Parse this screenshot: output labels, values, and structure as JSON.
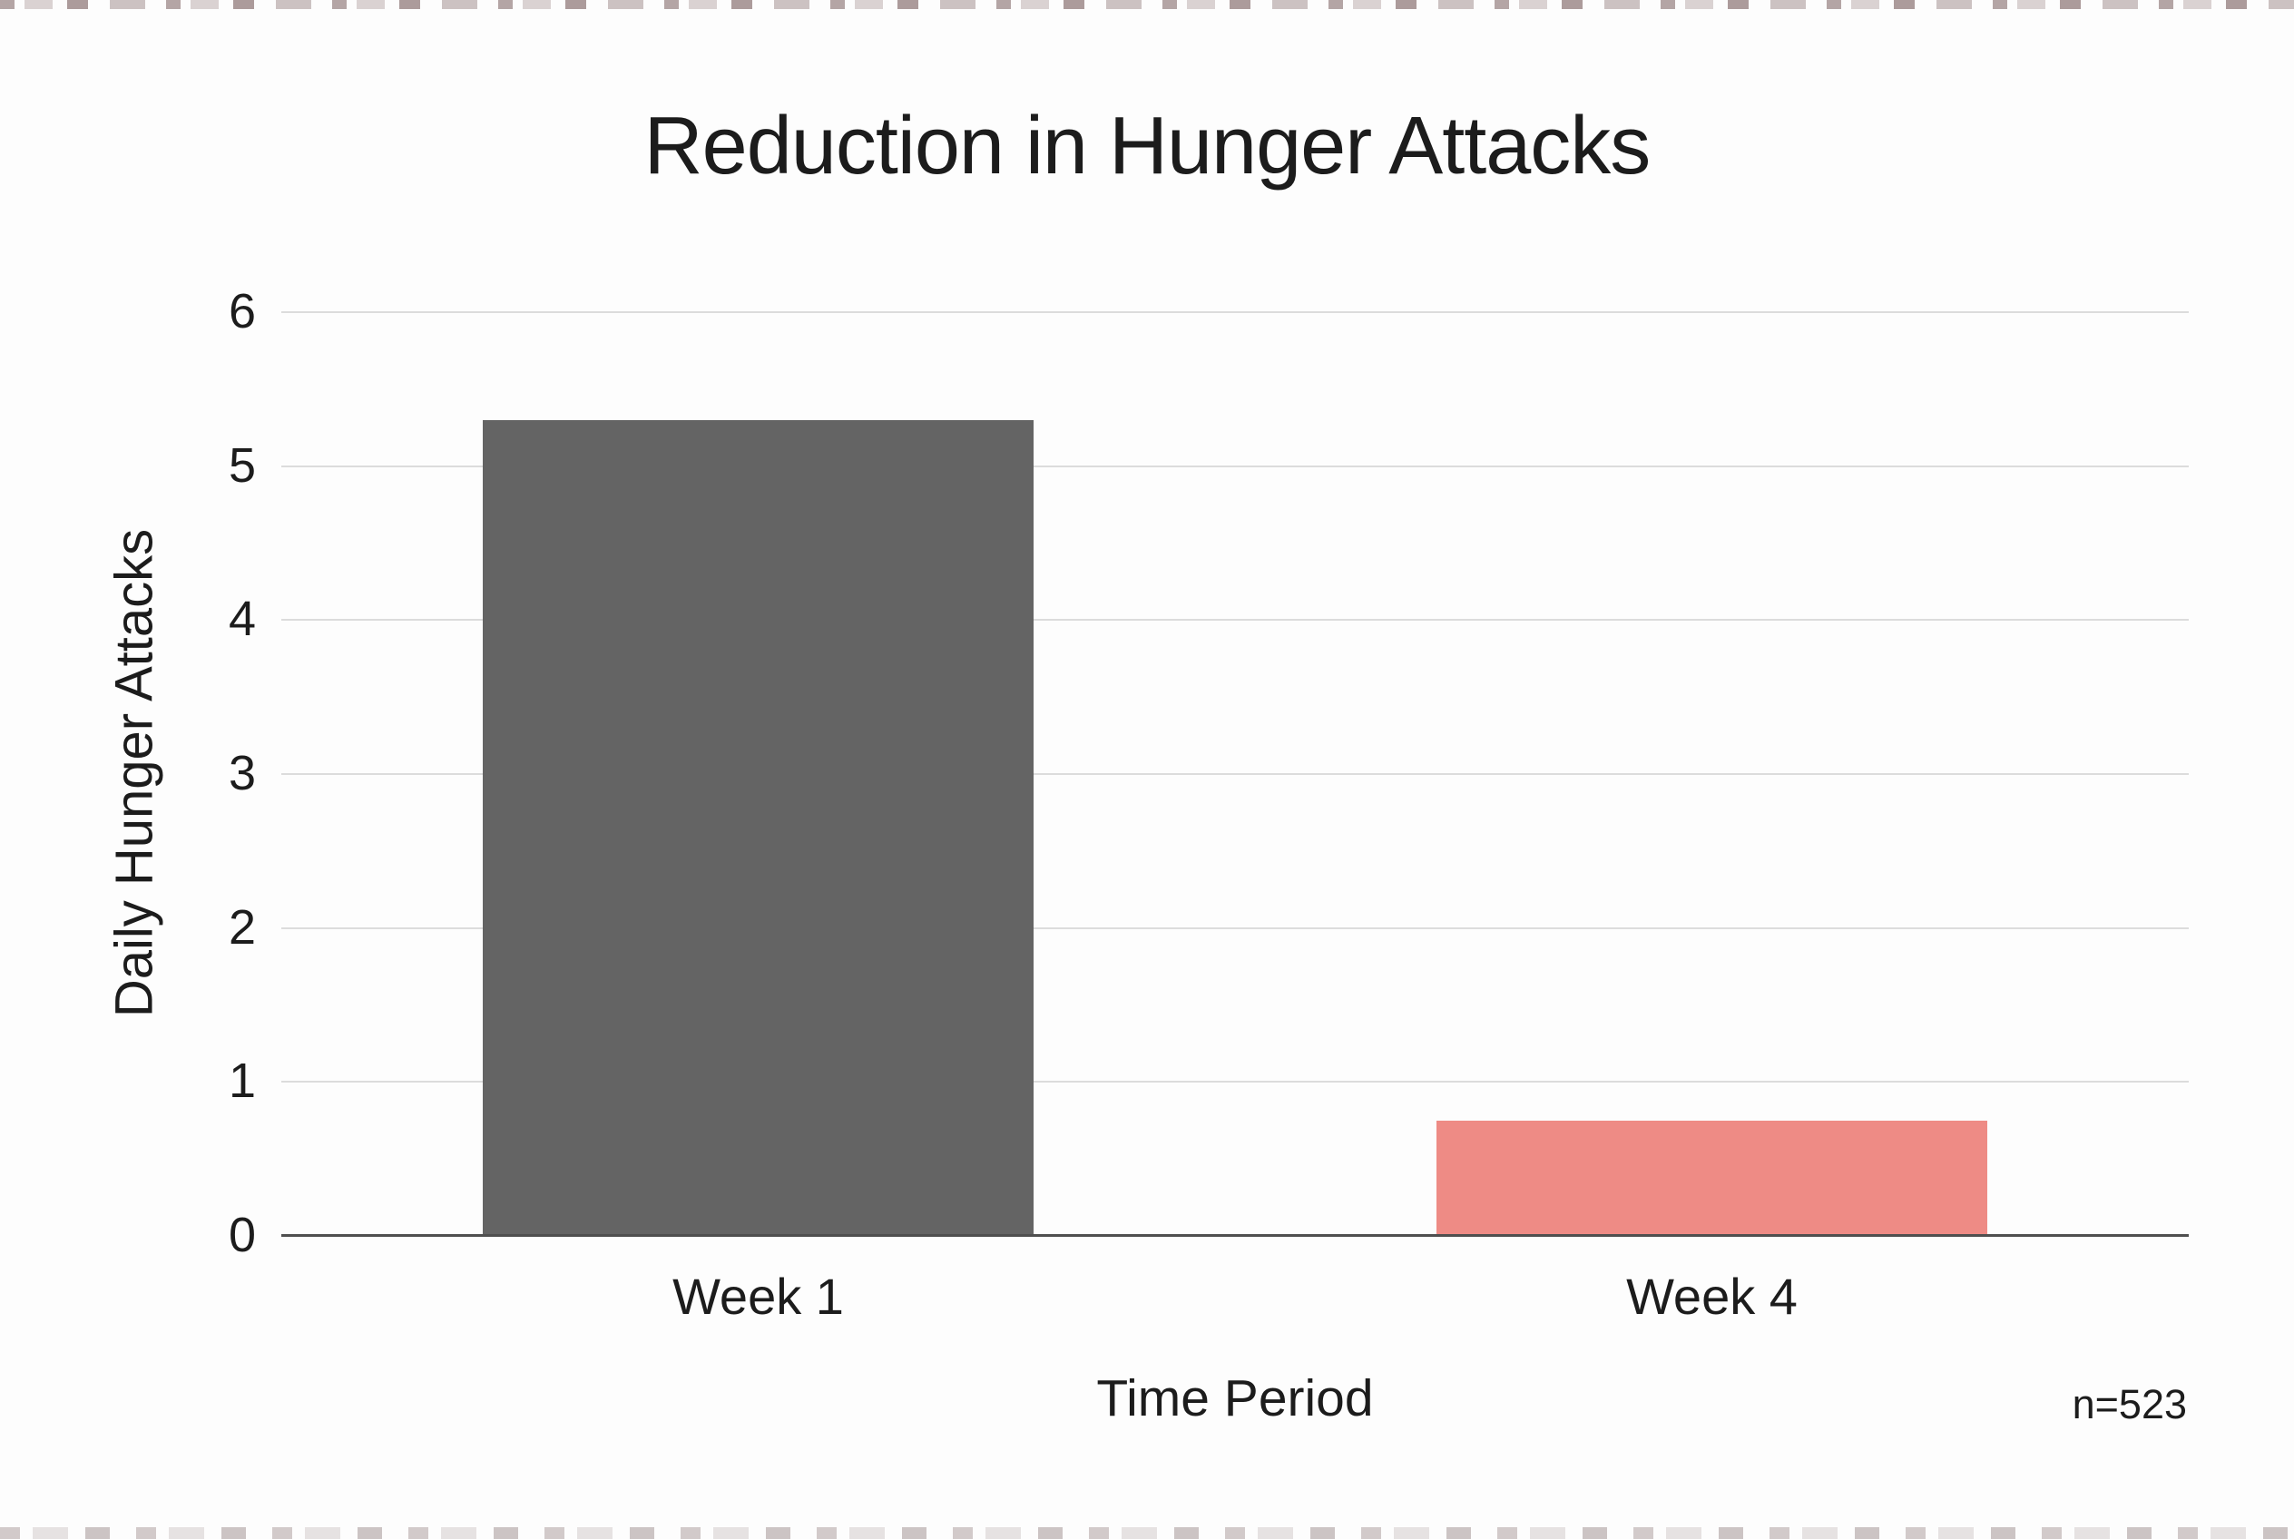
{
  "chart_data": {
    "type": "bar",
    "title": "Reduction in Hunger Attacks",
    "xlabel": "Time Period",
    "ylabel": "Daily Hunger Attacks",
    "categories": [
      "Week 1",
      "Week 4"
    ],
    "values": [
      5.3,
      0.75
    ],
    "bar_colors": [
      "#646464",
      "#ee8b85"
    ],
    "ylim": [
      0,
      6
    ],
    "yticks": [
      0,
      1,
      2,
      3,
      4,
      5,
      6
    ],
    "grid": "horizontal",
    "legend": "none",
    "annotation": "n=523",
    "gridline_color": "#dcdcdc",
    "axis_color": "#4f4f4f",
    "text_color": "#1c1c1c",
    "background_color": "#fdfdfd"
  }
}
